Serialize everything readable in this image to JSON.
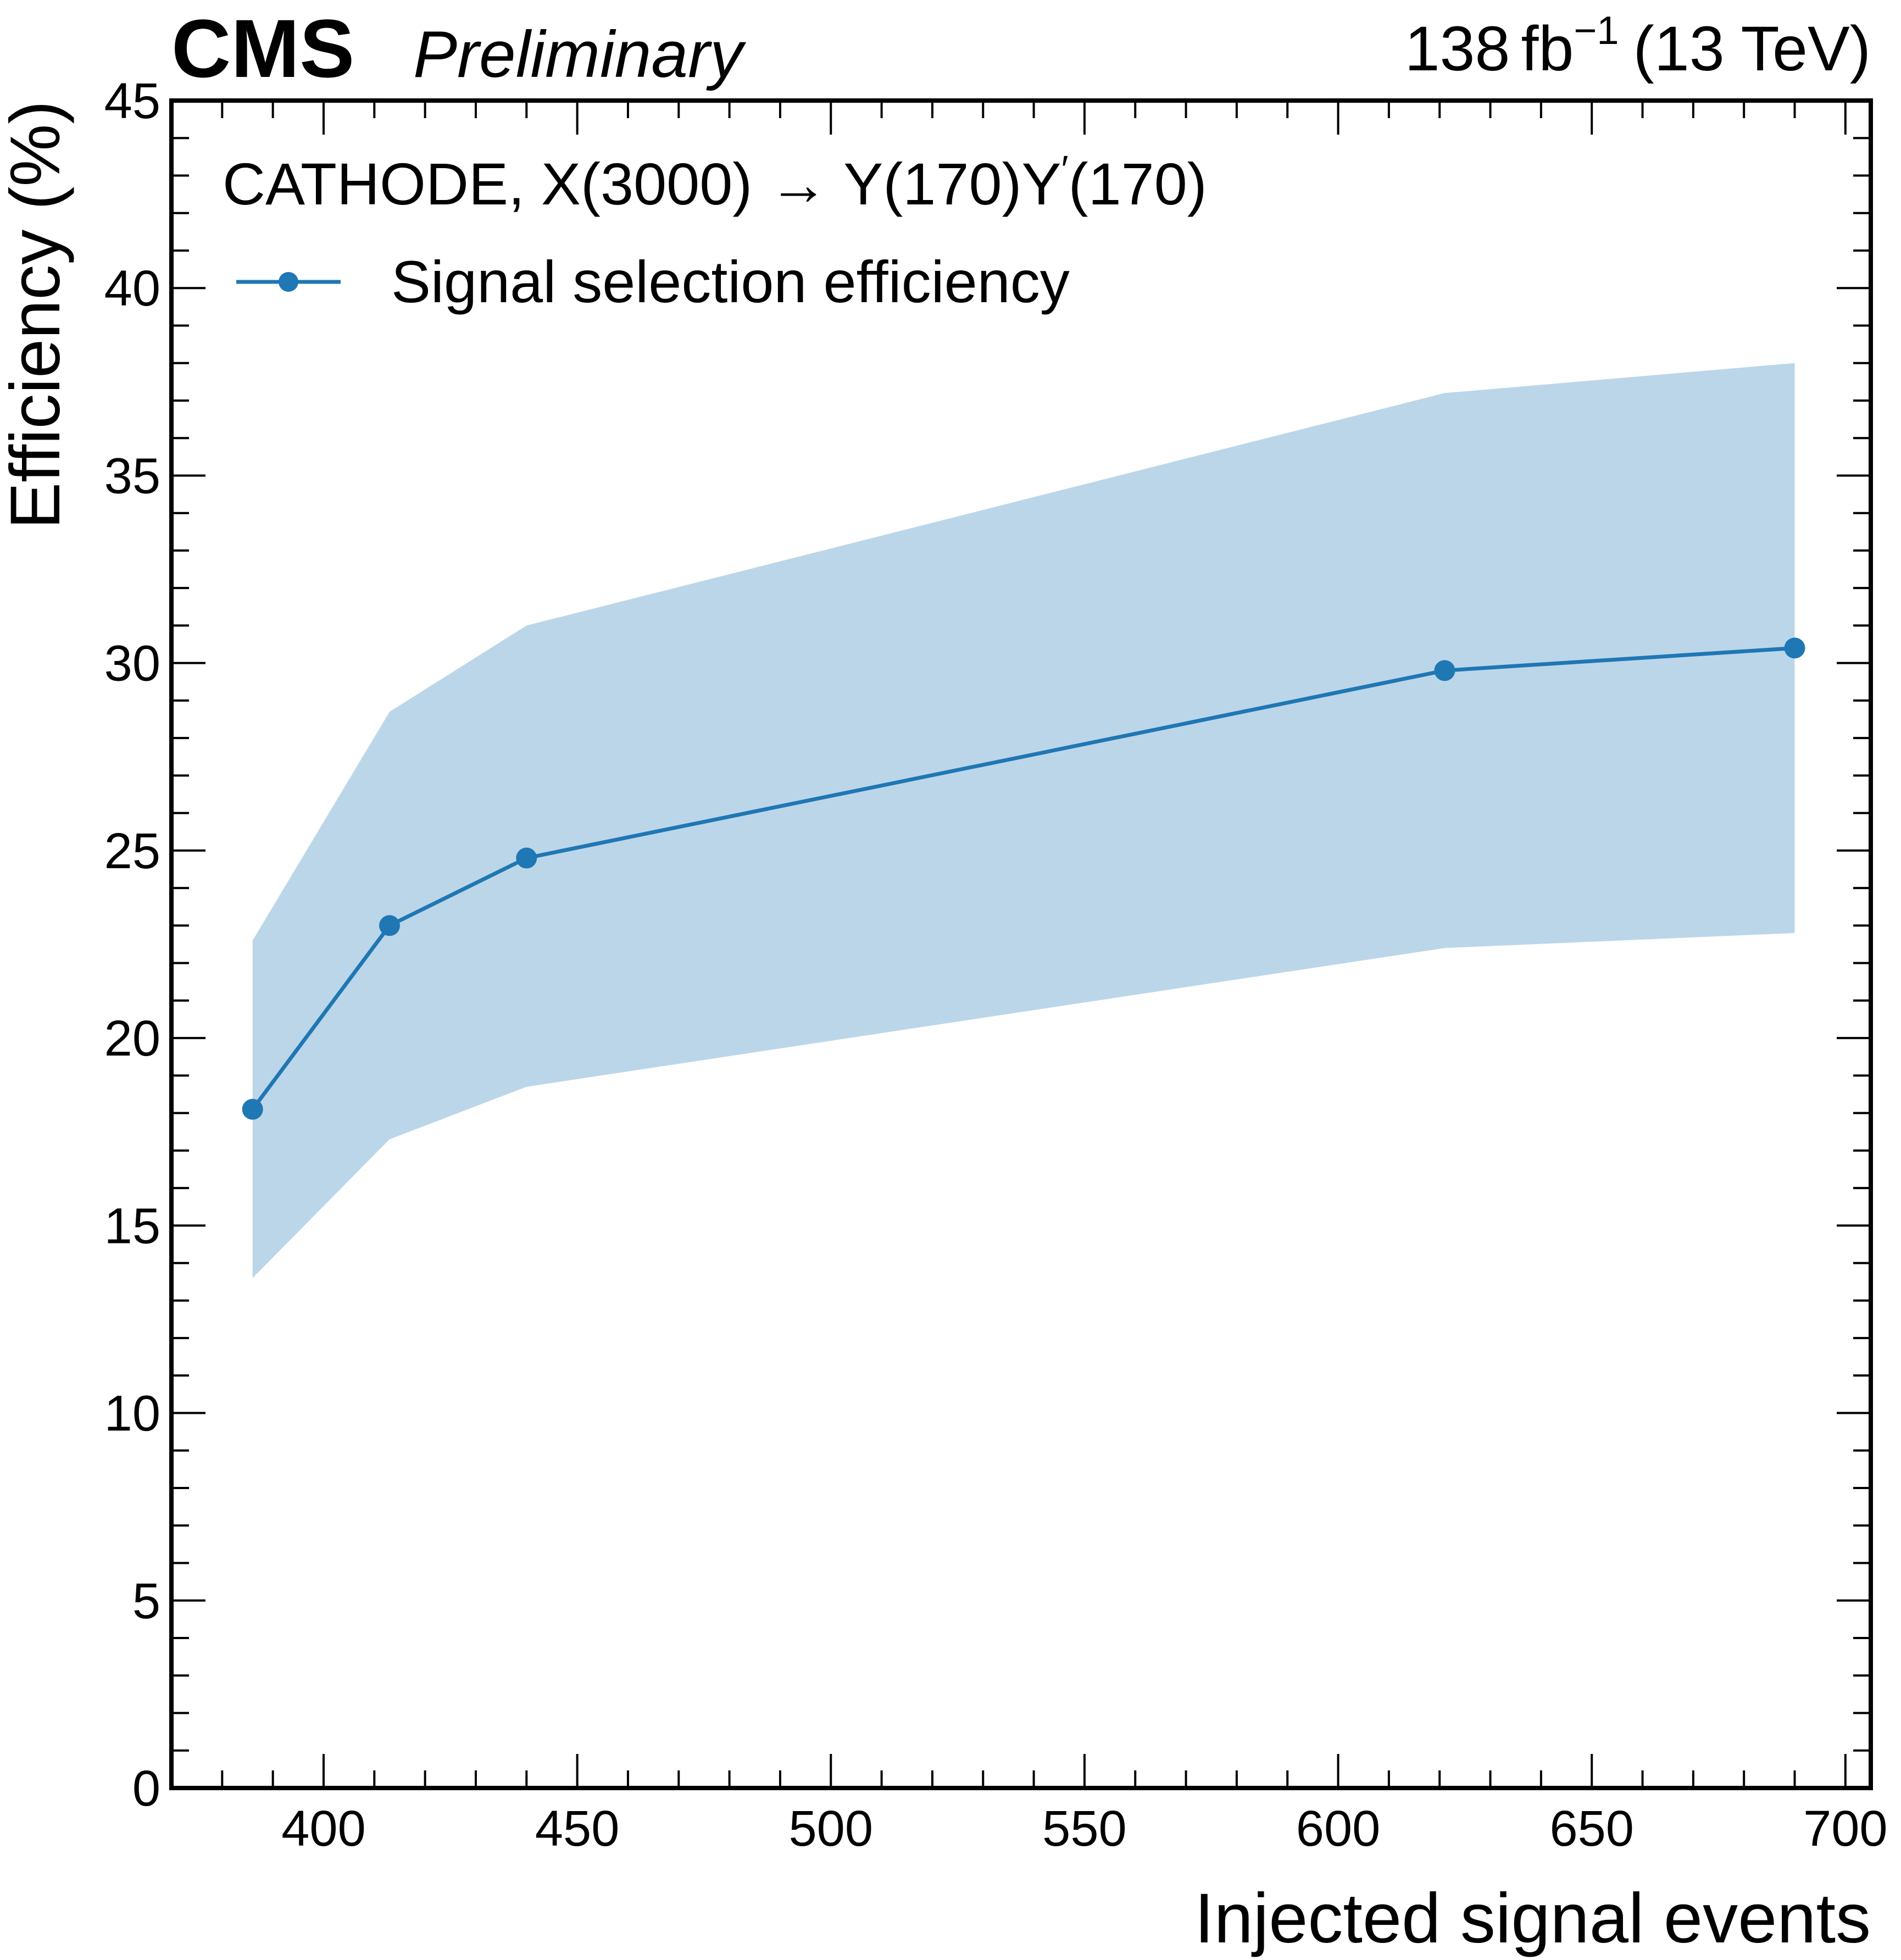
{
  "header": {
    "experiment": "CMS",
    "status": "Preliminary",
    "lumi_value": "138",
    "lumi_unit": "fb",
    "lumi_exponent": "−1",
    "energy": "(13 TeV)"
  },
  "chart_data": {
    "type": "line",
    "xlabel": "Injected signal events",
    "ylabel": "Efficiency (%)",
    "xlim": [
      370,
      705
    ],
    "ylim": [
      0,
      45
    ],
    "x_ticks": [
      400,
      450,
      500,
      550,
      600,
      650,
      700
    ],
    "y_ticks": [
      0,
      5,
      10,
      15,
      20,
      25,
      30,
      35,
      40,
      45
    ],
    "x_minor_step": 10,
    "y_minor_step": 1,
    "annotation": {
      "prefix": "CATHODE, X(3000) → Y(170)Y",
      "prime": "′",
      "suffix": "(170)"
    },
    "legend_position": "top-left",
    "series": [
      {
        "name": "Signal selection efficiency",
        "color": "#1f77b4",
        "band_color": "#bcd6e9",
        "x": [
          386,
          413,
          440,
          621,
          690
        ],
        "y": [
          18.1,
          23.0,
          24.8,
          29.8,
          30.4
        ],
        "band_lower": [
          13.6,
          17.3,
          18.7,
          22.4,
          22.8
        ],
        "band_upper": [
          22.6,
          28.7,
          31.0,
          37.2,
          38.0
        ]
      }
    ]
  }
}
